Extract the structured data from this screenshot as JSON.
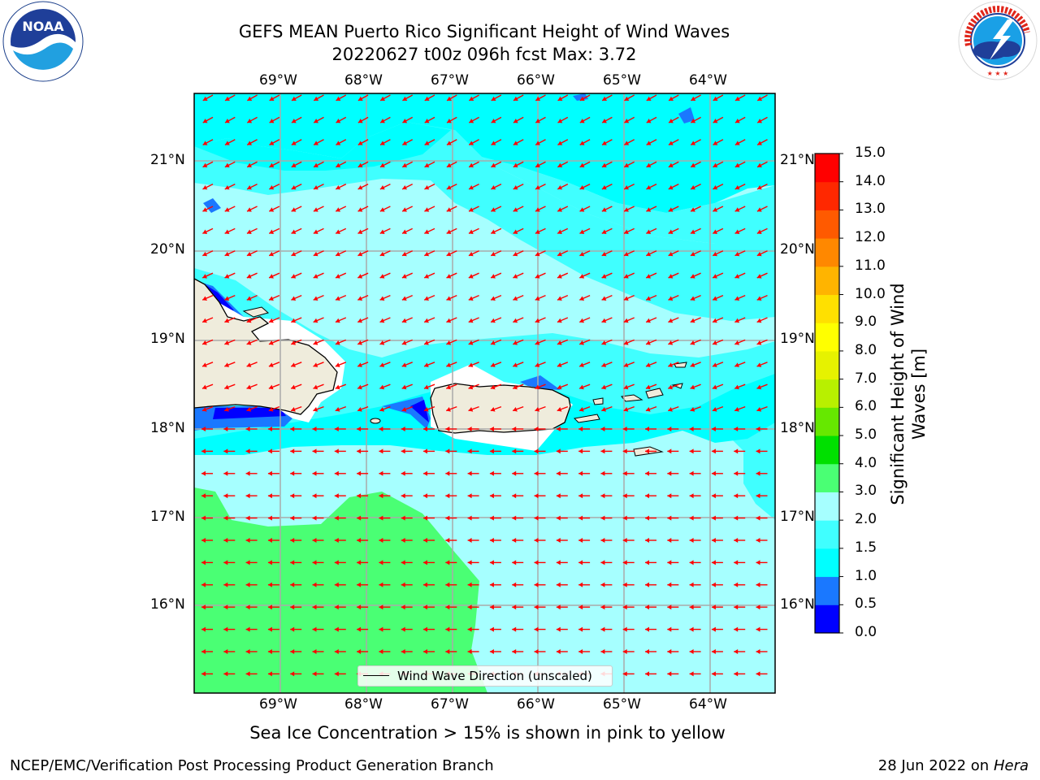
{
  "title_line1": "GEFS MEAN Puerto Rico Significant Height of Wind Waves",
  "title_line2": "20220627 t00z 096h fcst   Max: 3.72",
  "lon_labels": [
    "69°W",
    "68°W",
    "67°W",
    "66°W",
    "65°W",
    "64°W"
  ],
  "lat_labels": [
    "21°N",
    "20°N",
    "19°N",
    "18°N",
    "17°N",
    "16°N"
  ],
  "legend_text": "Wind Wave Direction (unscaled)",
  "colorbar": {
    "title": "Significant Height of Wind Waves [m]",
    "levels": [
      "0.0",
      "0.5",
      "1.0",
      "1.5",
      "2.0",
      "3.0",
      "4.0",
      "5.0",
      "6.0",
      "7.0",
      "8.0",
      "9.0",
      "10.0",
      "11.0",
      "12.0",
      "13.0",
      "14.0",
      "15.0"
    ],
    "colors": [
      "#0000ff",
      "#1a78ff",
      "#00ffff",
      "#40ffff",
      "#a6ffff",
      "#4aff74",
      "#00e000",
      "#66e800",
      "#b8f000",
      "#e6f200",
      "#ffff00",
      "#ffe000",
      "#ffb400",
      "#ff8800",
      "#ff5a00",
      "#ff2800",
      "#ff0000"
    ]
  },
  "ice_note": "Sea Ice Concentration > 15% is shown in pink to yellow",
  "credit_left": "NCEP/EMC/Verification Post Processing Product Generation Branch",
  "credit_date": "28 Jun 2022 on",
  "credit_machine": "Hera",
  "map_data": {
    "lon_range": [
      -70,
      -63.25
    ],
    "lat_range": [
      15.0,
      21.75
    ],
    "arrow_color": "#ff0000",
    "land_color": "#efecdc",
    "wave_direction": "westward"
  }
}
